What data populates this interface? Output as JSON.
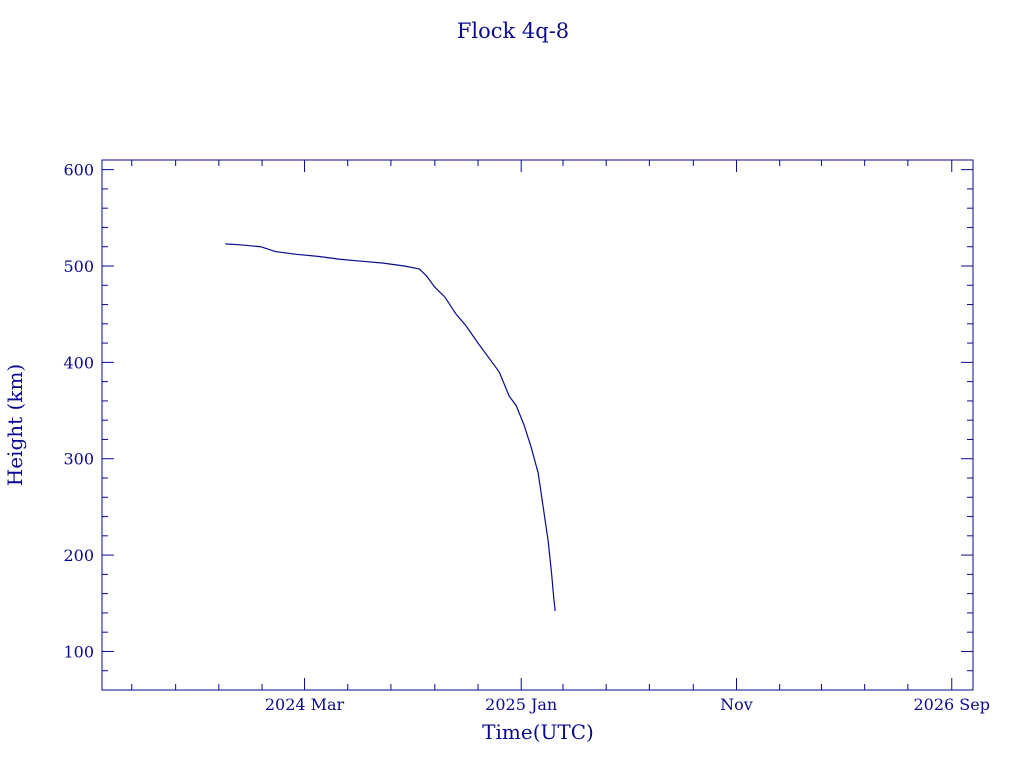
{
  "chart_data": {
    "type": "line",
    "title": "Flock 4q-8",
    "xlabel": "Time(UTC)",
    "ylabel": "Height (km)",
    "x_tick_labels": [
      {
        "date": "2024-03-01",
        "label": "2024 Mar"
      },
      {
        "date": "2025-01-01",
        "label": "2025 Jan"
      },
      {
        "date": "2025-11-01",
        "label": "Nov"
      },
      {
        "date": "2026-09-01",
        "label": "2026 Sep"
      }
    ],
    "xlim": [
      "2023-05-20",
      "2026-10-01"
    ],
    "ylim": [
      60,
      610
    ],
    "y_ticks": [
      100,
      200,
      300,
      400,
      500,
      600
    ],
    "grid": false,
    "colors": {
      "axis": "#0a0a8c",
      "line": "#0a0a8c"
    },
    "series": [
      {
        "x": [
          "2023-11-10",
          "2023-12-01",
          "2023-12-30",
          "2024-01-20",
          "2024-02-20",
          "2024-03-20",
          "2024-04-20",
          "2024-05-20",
          "2024-06-20",
          "2024-07-20",
          "2024-08-10",
          "2024-08-20",
          "2024-09-01",
          "2024-09-15",
          "2024-10-01",
          "2024-10-15",
          "2024-11-01",
          "2024-11-15",
          "2024-12-01",
          "2024-12-15",
          "2024-12-25",
          "2025-01-05",
          "2025-01-15",
          "2025-01-25",
          "2025-02-01",
          "2025-02-08",
          "2025-02-13",
          "2025-02-16",
          "2025-02-18"
        ],
        "y": [
          523,
          522,
          520,
          515,
          512,
          510,
          507,
          505,
          503,
          500,
          497,
          490,
          478,
          468,
          450,
          438,
          420,
          406,
          390,
          365,
          355,
          335,
          312,
          285,
          250,
          215,
          180,
          155,
          142
        ]
      }
    ]
  }
}
